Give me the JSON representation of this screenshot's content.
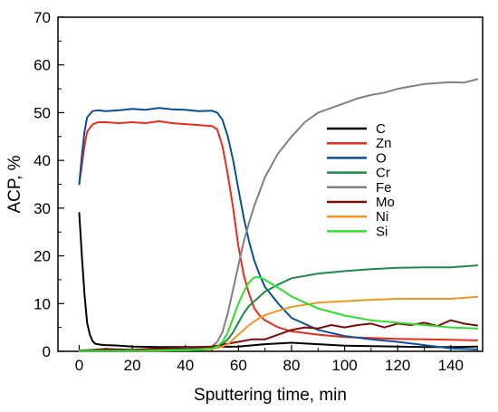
{
  "chart_data": {
    "type": "line",
    "title": "",
    "xlabel": "Sputtering time, min",
    "ylabel": "ACP, %",
    "xlim": [
      -8,
      152
    ],
    "ylim": [
      0,
      70
    ],
    "xticks": [
      0,
      20,
      40,
      60,
      80,
      100,
      120,
      140
    ],
    "yticks": [
      0,
      10,
      20,
      30,
      40,
      50,
      60,
      70
    ],
    "grid": false,
    "legend_position": "center-right",
    "series": [
      {
        "name": "C",
        "color": "#000000",
        "x": [
          0,
          1,
          2,
          3,
          4,
          5,
          6,
          8,
          10,
          15,
          20,
          30,
          40,
          50,
          60,
          70,
          80,
          90,
          100,
          110,
          120,
          130,
          140,
          150
        ],
        "y": [
          29,
          20,
          12,
          6,
          3.5,
          2.2,
          1.6,
          1.4,
          1.3,
          1.2,
          1.0,
          0.9,
          0.9,
          0.9,
          1.0,
          1.5,
          1.8,
          1.5,
          1.2,
          1.1,
          1.0,
          0.9,
          0.9,
          1.0
        ]
      },
      {
        "name": "Zn",
        "color": "#ee2a1a",
        "x": [
          0,
          1,
          2,
          3,
          5,
          7,
          10,
          15,
          20,
          25,
          30,
          35,
          40,
          45,
          50,
          52,
          54,
          56,
          58,
          60,
          62,
          64,
          66,
          68,
          70,
          75,
          80,
          90,
          100,
          110,
          120,
          130,
          140,
          150
        ],
        "y": [
          35,
          39,
          43,
          46,
          47.5,
          48,
          48,
          47.8,
          48,
          47.8,
          48.2,
          47.8,
          47.6,
          47.4,
          47.2,
          46.5,
          43,
          37,
          30,
          22,
          16,
          12,
          9,
          7.5,
          6.5,
          5,
          4.2,
          3.5,
          3.0,
          2.8,
          2.6,
          2.5,
          2.4,
          2.3
        ]
      },
      {
        "name": "O",
        "color": "#0a4f9a",
        "x": [
          0,
          1,
          2,
          3,
          5,
          7,
          10,
          15,
          20,
          25,
          30,
          35,
          40,
          45,
          50,
          52,
          54,
          56,
          58,
          60,
          62,
          64,
          66,
          68,
          70,
          75,
          80,
          90,
          100,
          110,
          120,
          130,
          140,
          150
        ],
        "y": [
          35,
          41,
          46,
          49,
          50.3,
          50.5,
          50.3,
          50.5,
          50.8,
          50.6,
          51,
          50.7,
          50.6,
          50.3,
          50.4,
          50,
          48.5,
          45,
          40,
          34,
          28,
          23,
          19,
          16,
          13.5,
          10,
          7,
          4.5,
          3.2,
          2.5,
          2.0,
          1.3,
          0.6,
          0.4
        ]
      },
      {
        "name": "Cr",
        "color": "#1c8a4a",
        "x": [
          0,
          10,
          20,
          30,
          40,
          45,
          50,
          52,
          54,
          56,
          58,
          60,
          62,
          64,
          66,
          68,
          70,
          75,
          80,
          90,
          100,
          110,
          120,
          130,
          140,
          150
        ],
        "y": [
          0.2,
          0.2,
          0.3,
          0.3,
          0.4,
          0.6,
          0.8,
          1.0,
          1.5,
          2.5,
          4,
          6,
          8,
          9.5,
          10.5,
          11.5,
          12.5,
          14,
          15.3,
          16.3,
          16.8,
          17.2,
          17.5,
          17.6,
          17.6,
          18
        ]
      },
      {
        "name": "Fe",
        "color": "#808080",
        "x": [
          0,
          20,
          40,
          45,
          50,
          52,
          54,
          56,
          58,
          60,
          62,
          64,
          66,
          68,
          70,
          75,
          80,
          85,
          90,
          95,
          100,
          105,
          110,
          115,
          120,
          125,
          130,
          135,
          140,
          145,
          150
        ],
        "y": [
          0.1,
          0.1,
          0.2,
          0.4,
          1.0,
          2,
          4,
          8,
          13,
          18,
          23,
          27,
          30.5,
          33.5,
          36.5,
          41.5,
          45,
          48,
          50,
          51,
          52,
          53,
          53.7,
          54.2,
          55,
          55.5,
          56,
          56.2,
          56.4,
          56.3,
          57
        ]
      },
      {
        "name": "Mo",
        "color": "#7a0c0c",
        "x": [
          0,
          10,
          20,
          30,
          40,
          50,
          55,
          60,
          65,
          70,
          75,
          80,
          85,
          90,
          95,
          100,
          105,
          110,
          115,
          120,
          125,
          130,
          135,
          140,
          145,
          150
        ],
        "y": [
          0.1,
          0.5,
          0.3,
          0.6,
          0.8,
          1.0,
          1.5,
          2.0,
          2.5,
          2.5,
          3.5,
          4.5,
          5.0,
          4.8,
          5.5,
          5.0,
          5.5,
          5.8,
          5.0,
          5.8,
          5.5,
          6.0,
          5.3,
          6.5,
          5.8,
          5.4
        ]
      },
      {
        "name": "Ni",
        "color": "#f0961e",
        "x": [
          0,
          20,
          40,
          45,
          50,
          52,
          54,
          56,
          58,
          60,
          62,
          64,
          66,
          68,
          70,
          75,
          80,
          90,
          100,
          110,
          120,
          130,
          140,
          150
        ],
        "y": [
          0.1,
          0.1,
          0.2,
          0.3,
          0.5,
          0.7,
          1.0,
          1.5,
          2.5,
          3.5,
          4.5,
          5.5,
          6.3,
          7.0,
          7.6,
          8.5,
          9.3,
          10.2,
          10.5,
          10.8,
          11,
          11,
          11,
          11.4
        ]
      },
      {
        "name": "Si",
        "color": "#2ee02e",
        "x": [
          0,
          20,
          40,
          45,
          50,
          52,
          54,
          56,
          58,
          60,
          62,
          64,
          66,
          68,
          70,
          72,
          75,
          80,
          85,
          90,
          100,
          110,
          120,
          130,
          140,
          150
        ],
        "y": [
          0.1,
          0.1,
          0.2,
          0.3,
          0.6,
          1.0,
          2.0,
          4.0,
          7.0,
          10.0,
          12.5,
          14.5,
          15.5,
          15.5,
          15,
          14.3,
          13.3,
          11.5,
          10.2,
          9.0,
          7.5,
          6.5,
          6.0,
          5.5,
          5.0,
          4.8
        ]
      }
    ]
  }
}
